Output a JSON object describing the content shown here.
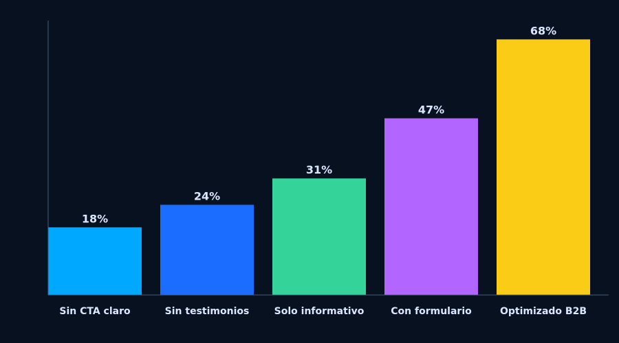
{
  "colors": {
    "background": "#081120",
    "axis": "#4a5d7c",
    "text": "#dbe6ff"
  },
  "chart_data": {
    "type": "bar",
    "categories": [
      "Sin CTA claro",
      "Sin testimonios",
      "Solo informativo",
      "Con formulario",
      "Optimizado B2B"
    ],
    "values": [
      18,
      24,
      31,
      47,
      68
    ],
    "value_labels": [
      "18%",
      "24%",
      "31%",
      "47%",
      "68%"
    ],
    "bar_colors": [
      "#00a8ff",
      "#1a6dff",
      "#34d399",
      "#b366ff",
      "#facc15"
    ],
    "ylim": [
      0,
      73
    ],
    "grid": false,
    "legend": "none"
  }
}
